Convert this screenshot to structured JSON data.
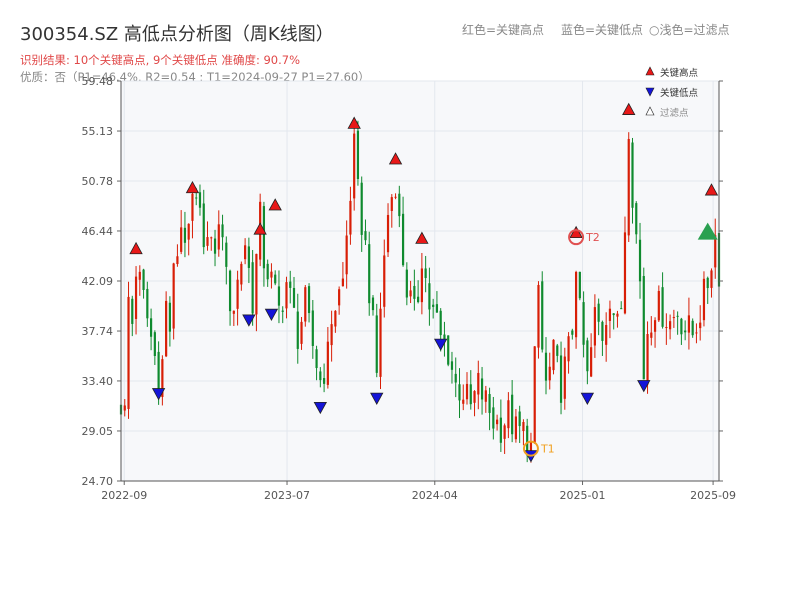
{
  "header": {
    "title": "300354.SZ 高低点分析图（周K线图）",
    "result_text": "识别结果: 10个关键高点, 9个关键低点  准确度: 90.7%",
    "quality_text": "优质：否（P1=46.4%, R2=0.54 ; T1=2024-09-27 P1=27.60）",
    "legend_hint": {
      "red": "红色=关键高点",
      "blue": "蓝色=关键低点",
      "hollow": "○浅色=过滤点"
    }
  },
  "legend": {
    "items": [
      {
        "label": "关键高点",
        "color": "#e81818",
        "shape": "up-triangle"
      },
      {
        "label": "关键低点",
        "color": "#1414d8",
        "shape": "down-triangle"
      },
      {
        "label": "过滤点",
        "color": "#ffffff",
        "shape": "up-triangle-hollow"
      }
    ]
  },
  "colors": {
    "up": "#d81e06",
    "down": "#0f8a2e",
    "high_marker": "#e81818",
    "low_marker": "#1414d8",
    "annotation": "#f0a020",
    "t2_marker": "#e05050",
    "grid": "#e3e7ee",
    "plot_bg": "#f7f8fa",
    "target_marker": "#2aa050"
  },
  "chart_data": {
    "type": "candlestick",
    "title": "300354.SZ 高低点分析图（周K线图）",
    "x_start": "2022-08-26",
    "x_end": "2025-09-12",
    "xlim": [
      "2022-08-26",
      "2025-09-12"
    ],
    "x_ticks": [
      "2022-09",
      "2023-07",
      "2024-04",
      "2025-01",
      "2025-09"
    ],
    "ylim": [
      24.7,
      59.48
    ],
    "y_ticks": [
      24.7,
      29.05,
      33.4,
      37.74,
      42.09,
      46.44,
      50.78,
      55.13,
      59.48
    ],
    "grid": true,
    "legend_position": "top-right",
    "price_path": [
      [
        "2022-08-26",
        31.5
      ],
      [
        "2022-09-02",
        30.5
      ],
      [
        "2022-09-09",
        40.5
      ],
      [
        "2022-09-16",
        38.5
      ],
      [
        "2022-09-23",
        43.2
      ],
      [
        "2022-10-07",
        40.5
      ],
      [
        "2022-10-28",
        35.5
      ],
      [
        "2022-11-04",
        33.5
      ],
      [
        "2022-11-11",
        35.0
      ],
      [
        "2022-11-18",
        40.0
      ],
      [
        "2022-11-25",
        38.0
      ],
      [
        "2022-12-02",
        42.5
      ],
      [
        "2022-12-16",
        47.0
      ],
      [
        "2022-12-30",
        45.5
      ],
      [
        "2023-01-06",
        49.0
      ],
      [
        "2023-01-27",
        46.5
      ],
      [
        "2023-02-10",
        44.5
      ],
      [
        "2023-03-03",
        47.0
      ],
      [
        "2023-03-10",
        42.0
      ],
      [
        "2023-03-17",
        40.5
      ],
      [
        "2023-03-24",
        40.0
      ],
      [
        "2023-04-07",
        44.0
      ],
      [
        "2023-04-14",
        45.5
      ],
      [
        "2023-04-21",
        43.0
      ],
      [
        "2023-04-28",
        40.5
      ],
      [
        "2023-05-05",
        44.0
      ],
      [
        "2023-05-12",
        47.5
      ],
      [
        "2023-05-19",
        44.0
      ],
      [
        "2023-06-02",
        42.0
      ],
      [
        "2023-06-16",
        39.5
      ],
      [
        "2023-06-30",
        42.0
      ],
      [
        "2023-07-07",
        40.5
      ],
      [
        "2023-07-21",
        37.5
      ],
      [
        "2023-08-04",
        40.0
      ],
      [
        "2023-08-11",
        38.0
      ],
      [
        "2023-08-25",
        35.0
      ],
      [
        "2023-09-01",
        33.5
      ],
      [
        "2023-09-15",
        35.5
      ],
      [
        "2023-09-22",
        39.0
      ],
      [
        "2023-10-13",
        42.0
      ],
      [
        "2023-10-20",
        46.0
      ],
      [
        "2023-11-03",
        53.5
      ],
      [
        "2023-11-10",
        49.5
      ],
      [
        "2023-11-24",
        45.0
      ],
      [
        "2023-12-08",
        38.0
      ],
      [
        "2023-12-15",
        34.0
      ],
      [
        "2023-12-22",
        40.0
      ],
      [
        "2023-12-29",
        44.0
      ],
      [
        "2024-01-05",
        48.0
      ],
      [
        "2024-01-19",
        51.0
      ],
      [
        "2024-01-26",
        47.0
      ],
      [
        "2024-02-02",
        44.0
      ],
      [
        "2024-02-09",
        41.5
      ],
      [
        "2024-02-23",
        39.0
      ],
      [
        "2024-03-01",
        41.0
      ],
      [
        "2024-03-08",
        44.5
      ],
      [
        "2024-03-22",
        40.0
      ],
      [
        "2024-04-05",
        38.5
      ],
      [
        "2024-04-12",
        37.0
      ],
      [
        "2024-04-26",
        36.0
      ],
      [
        "2024-05-10",
        33.0
      ],
      [
        "2024-05-24",
        32.5
      ],
      [
        "2024-06-07",
        31.0
      ],
      [
        "2024-06-21",
        33.0
      ],
      [
        "2024-07-05",
        31.5
      ],
      [
        "2024-07-19",
        30.0
      ],
      [
        "2024-08-02",
        29.5
      ],
      [
        "2024-08-16",
        30.5
      ],
      [
        "2024-08-30",
        29.0
      ],
      [
        "2024-09-13",
        29.0
      ],
      [
        "2024-09-27",
        27.6
      ],
      [
        "2024-10-04",
        35.0
      ],
      [
        "2024-10-11",
        41.5
      ],
      [
        "2024-10-18",
        36.0
      ],
      [
        "2024-10-25",
        33.0
      ],
      [
        "2024-11-08",
        35.5
      ],
      [
        "2024-11-22",
        33.0
      ],
      [
        "2024-12-06",
        36.0
      ],
      [
        "2024-12-13",
        38.0
      ],
      [
        "2024-12-20",
        44.0
      ],
      [
        "2024-12-27",
        39.0
      ],
      [
        "2025-01-10",
        33.5
      ],
      [
        "2025-01-17",
        36.0
      ],
      [
        "2025-01-24",
        39.0
      ],
      [
        "2025-02-07",
        37.5
      ],
      [
        "2025-02-21",
        41.0
      ],
      [
        "2025-03-07",
        38.0
      ],
      [
        "2025-03-14",
        40.0
      ],
      [
        "2025-03-21",
        47.0
      ],
      [
        "2025-03-28",
        56.0
      ],
      [
        "2025-04-04",
        50.0
      ],
      [
        "2025-04-11",
        46.0
      ],
      [
        "2025-04-18",
        42.0
      ],
      [
        "2025-04-25",
        34.0
      ],
      [
        "2025-05-02",
        38.0
      ],
      [
        "2025-05-16",
        40.0
      ],
      [
        "2025-05-30",
        39.5
      ],
      [
        "2025-06-13",
        38.5
      ],
      [
        "2025-06-27",
        39.5
      ],
      [
        "2025-07-11",
        38.0
      ],
      [
        "2025-07-25",
        37.5
      ],
      [
        "2025-08-08",
        39.5
      ],
      [
        "2025-08-22",
        42.0
      ],
      [
        "2025-09-05",
        46.0
      ],
      [
        "2025-09-12",
        43.0
      ]
    ],
    "key_highs": [
      {
        "date": "2022-09-23",
        "price": 44.2
      },
      {
        "date": "2023-01-06",
        "price": 49.5
      },
      {
        "date": "2023-05-12",
        "price": 45.9
      },
      {
        "date": "2023-06-09",
        "price": 48.0
      },
      {
        "date": "2023-11-03",
        "price": 55.1
      },
      {
        "date": "2024-01-19",
        "price": 52.0
      },
      {
        "date": "2024-03-08",
        "price": 45.1
      },
      {
        "date": "2024-12-20",
        "price": 45.6
      },
      {
        "date": "2025-03-28",
        "price": 56.3
      },
      {
        "date": "2025-08-29",
        "price": 49.3
      }
    ],
    "key_lows": [
      {
        "date": "2022-11-04",
        "price": 33.0
      },
      {
        "date": "2023-04-21",
        "price": 39.4
      },
      {
        "date": "2023-06-02",
        "price": 39.9
      },
      {
        "date": "2023-09-01",
        "price": 31.8
      },
      {
        "date": "2023-12-15",
        "price": 32.6
      },
      {
        "date": "2024-04-12",
        "price": 37.3
      },
      {
        "date": "2024-09-27",
        "price": 27.6
      },
      {
        "date": "2025-01-10",
        "price": 32.6
      },
      {
        "date": "2025-04-25",
        "price": 33.7
      }
    ],
    "annotations": [
      {
        "label": "T1",
        "date": "2024-09-27",
        "price": 27.6
      },
      {
        "label": "T2",
        "date": "2024-12-20",
        "price": 45.9
      }
    ],
    "target_marker": {
      "date": "2025-08-22",
      "price": 46.3
    }
  }
}
